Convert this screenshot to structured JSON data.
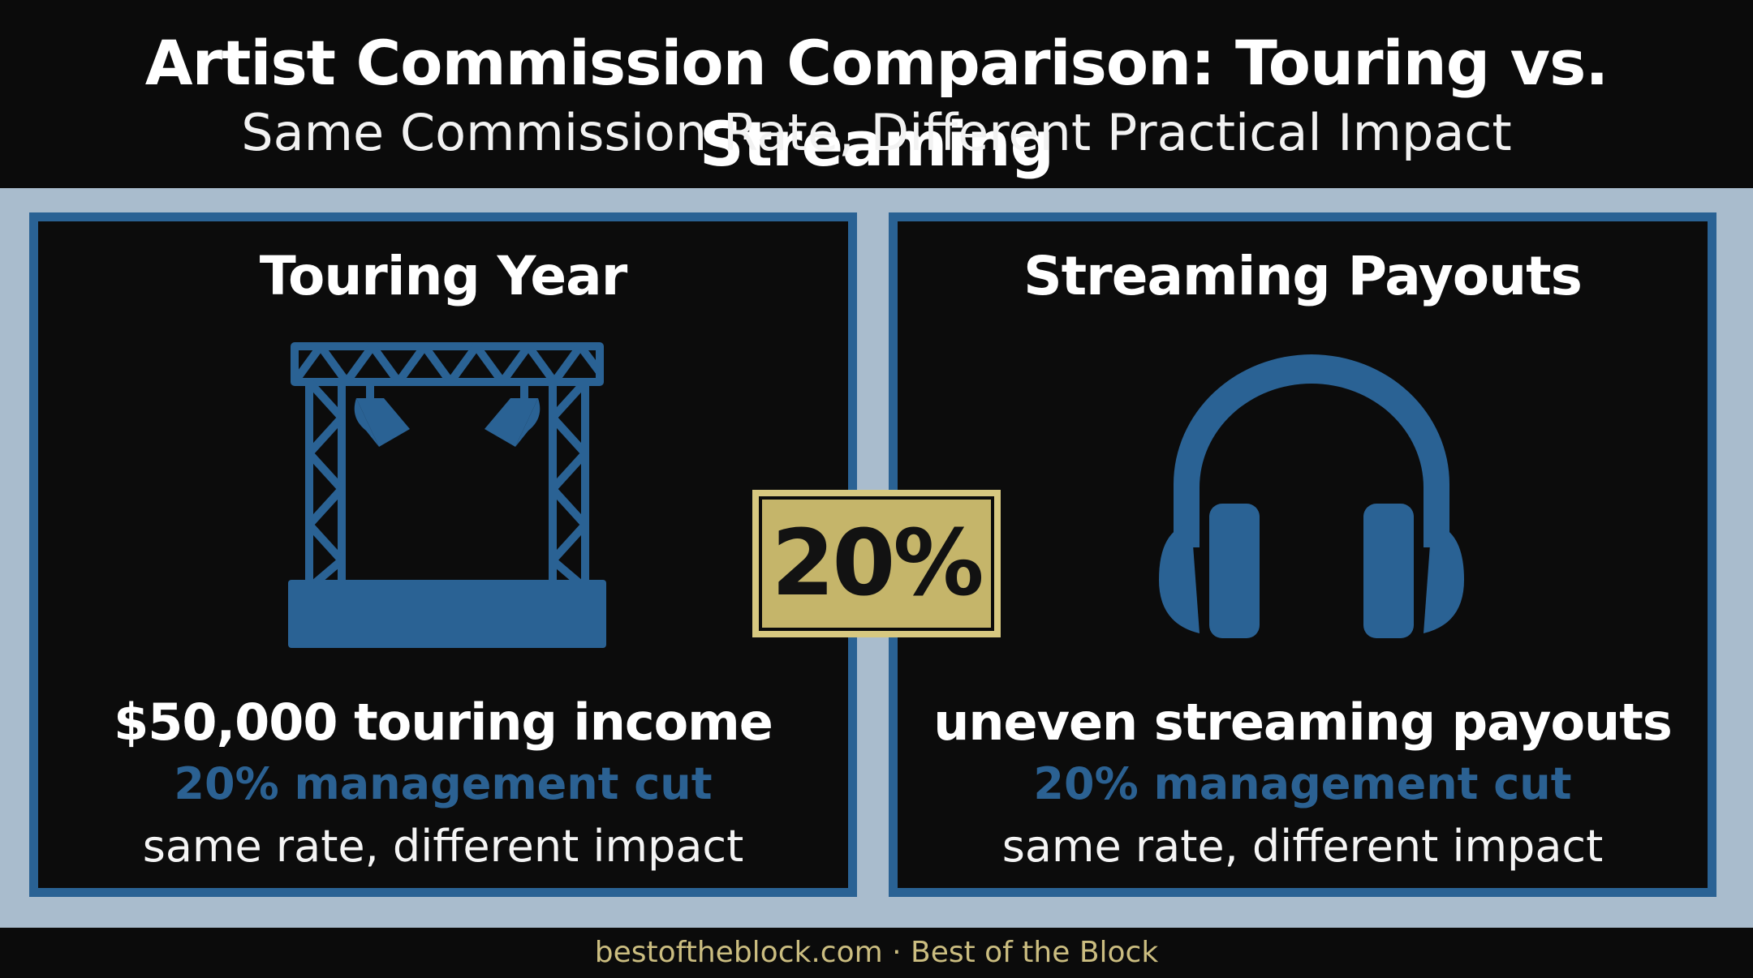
{
  "header": {
    "title": "Artist Commission Comparison: Touring vs. Streaming",
    "subtitle": "Same Commission Rate, Different Practical Impact"
  },
  "touring": {
    "title": "Touring Year",
    "icon": "concert-stage-icon",
    "headline": "$50,000 touring income",
    "cut": "20% management cut",
    "impact": "same rate, different impact"
  },
  "streaming": {
    "title": "Streaming Payouts",
    "icon": "headphones-icon",
    "headline": "uneven streaming payouts",
    "cut": "20% management cut",
    "impact": "same rate, different impact"
  },
  "rate_badge": {
    "label": "20%"
  },
  "footer": {
    "text": "bestoftheblock.com · Best of the Block"
  },
  "colors": {
    "accent_blue": "#2a6294",
    "badge_gold": "#c5b56a",
    "band_light_blue": "#a9bccd",
    "background": "#0b0b0b",
    "footer_text": "#cbbd80"
  }
}
